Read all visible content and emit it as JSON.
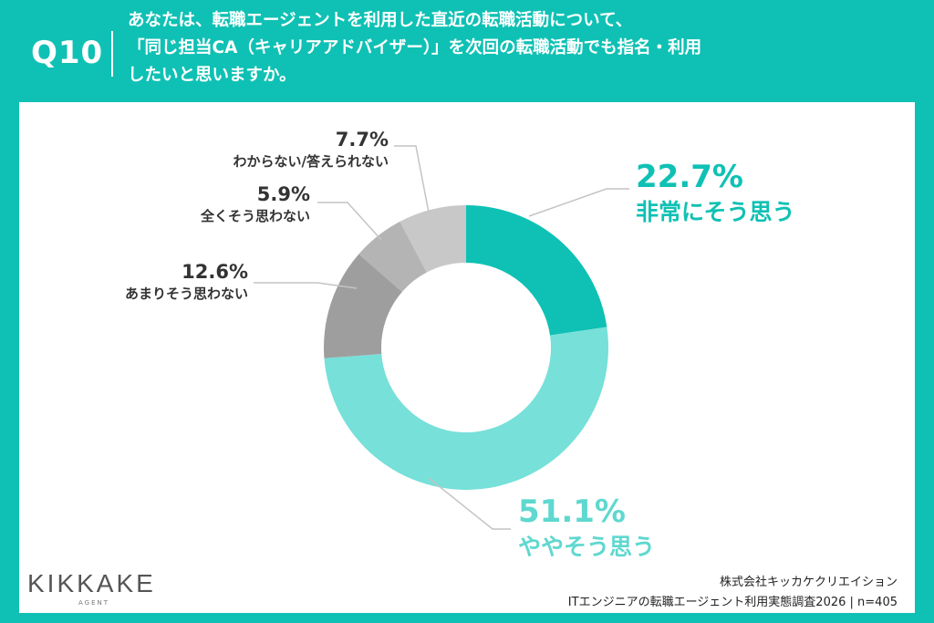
{
  "header": {
    "qnum": "Q10",
    "question_lines": [
      "あなたは、転職エージェントを利用した直近の転職活動について、",
      "「同じ担当CA（キャリアアドバイザー）」を次回の転職活動でも指名・利用",
      "したいと思いますか。"
    ]
  },
  "chart_data": {
    "type": "donut",
    "unit": "%",
    "slices": [
      {
        "label": "非常にそう思う",
        "value": 22.7,
        "color": "#0fc1b4"
      },
      {
        "label": "ややそう思う",
        "value": 51.1,
        "color": "#76e0d9"
      },
      {
        "label": "あまりそう思わない",
        "value": 12.6,
        "color": "#9e9e9e"
      },
      {
        "label": "全くそう思わない",
        "value": 5.9,
        "color": "#b4b4b4"
      },
      {
        "label": "わからない/答えられない",
        "value": 7.7,
        "color": "#c8c8c8"
      }
    ]
  },
  "footer": {
    "logo": "KIKKAKE",
    "logo_sub": "AGENT",
    "company": "株式会社キッカケクリエイション",
    "survey": "ITエンジニアの転職エージェント利用実態調査2026 | n=405"
  },
  "colors": {
    "background": "#0fc1b4",
    "card": "#ffffff",
    "label_dark": "#333333"
  }
}
